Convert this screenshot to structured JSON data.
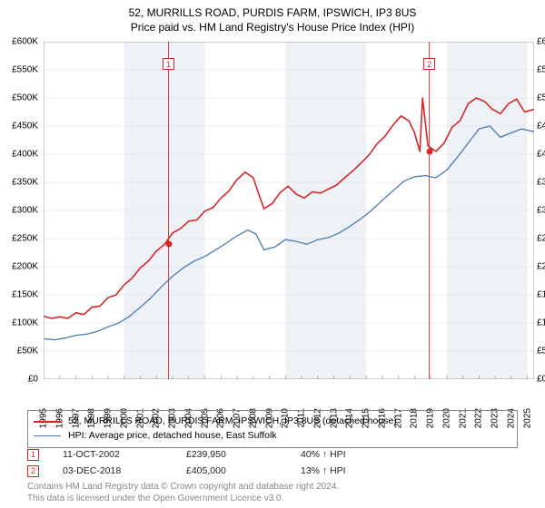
{
  "title": {
    "line1": "52, MURRILLS ROAD, PURDIS FARM, IPSWICH, IP3 8US",
    "line2": "Price paid vs. HM Land Registry's House Price Index (HPI)",
    "fontsize": 12,
    "color": "#000000"
  },
  "chart": {
    "type": "line",
    "background_color": "#ffffff",
    "shade_color": "#eef2f7",
    "grid_color": "#d8dde3",
    "axis_color": "#888888",
    "ylim": [
      0,
      600000
    ],
    "ytick_step": 50000,
    "y_ticks": [
      "£0",
      "£50K",
      "£100K",
      "£150K",
      "£200K",
      "£250K",
      "£300K",
      "£350K",
      "£400K",
      "£450K",
      "£500K",
      "£550K",
      "£600K"
    ],
    "x_years": [
      "1995",
      "1996",
      "1997",
      "1998",
      "1999",
      "2000",
      "2001",
      "2002",
      "2003",
      "2004",
      "2005",
      "2006",
      "2007",
      "2008",
      "2009",
      "2010",
      "2011",
      "2012",
      "2013",
      "2014",
      "2015",
      "2016",
      "2017",
      "2018",
      "2019",
      "2020",
      "2021",
      "2022",
      "2023",
      "2024",
      "2025"
    ],
    "series": [
      {
        "name": "price_paid",
        "label": "52, MURRILLS ROAD, PURDIS FARM, IPSWICH, IP3 8US (detached house)",
        "color": "#d62728",
        "line_width": 1.6,
        "points": [
          [
            0,
            112000
          ],
          [
            6,
            108000
          ],
          [
            12,
            111000
          ],
          [
            18,
            108000
          ],
          [
            24,
            118000
          ],
          [
            30,
            115000
          ],
          [
            36,
            128000
          ],
          [
            42,
            130000
          ],
          [
            48,
            145000
          ],
          [
            54,
            150000
          ],
          [
            60,
            168000
          ],
          [
            66,
            180000
          ],
          [
            72,
            198000
          ],
          [
            78,
            210000
          ],
          [
            84,
            228000
          ],
          [
            90,
            240000
          ],
          [
            96,
            260000
          ],
          [
            102,
            268000
          ],
          [
            108,
            281000
          ],
          [
            114,
            283000
          ],
          [
            120,
            299000
          ],
          [
            126,
            305000
          ],
          [
            132,
            322000
          ],
          [
            138,
            335000
          ],
          [
            144,
            355000
          ],
          [
            150,
            368000
          ],
          [
            156,
            358000
          ],
          [
            160,
            330000
          ],
          [
            164,
            303000
          ],
          [
            170,
            312000
          ],
          [
            176,
            332000
          ],
          [
            182,
            343000
          ],
          [
            188,
            329000
          ],
          [
            194,
            322000
          ],
          [
            200,
            333000
          ],
          [
            206,
            331000
          ],
          [
            212,
            338000
          ],
          [
            218,
            345000
          ],
          [
            224,
            358000
          ],
          [
            230,
            370000
          ],
          [
            236,
            384000
          ],
          [
            242,
            398000
          ],
          [
            248,
            418000
          ],
          [
            254,
            432000
          ],
          [
            260,
            452000
          ],
          [
            266,
            468000
          ],
          [
            272,
            459000
          ],
          [
            276,
            438000
          ],
          [
            280,
            405000
          ],
          [
            282,
            500000
          ],
          [
            286,
            415000
          ],
          [
            292,
            405000
          ],
          [
            298,
            420000
          ],
          [
            304,
            448000
          ],
          [
            310,
            460000
          ],
          [
            316,
            490000
          ],
          [
            322,
            500000
          ],
          [
            328,
            494000
          ],
          [
            334,
            480000
          ],
          [
            340,
            472000
          ],
          [
            346,
            490000
          ],
          [
            352,
            498000
          ],
          [
            358,
            475000
          ],
          [
            365,
            480000
          ]
        ]
      },
      {
        "name": "hpi",
        "label": "HPI: Average price, detached house, East Suffolk",
        "color": "#4c78b0",
        "line_width": 1.3,
        "points": [
          [
            0,
            72000
          ],
          [
            8,
            70000
          ],
          [
            16,
            73000
          ],
          [
            24,
            78000
          ],
          [
            32,
            80000
          ],
          [
            40,
            85000
          ],
          [
            48,
            93000
          ],
          [
            56,
            100000
          ],
          [
            64,
            112000
          ],
          [
            72,
            128000
          ],
          [
            80,
            145000
          ],
          [
            88,
            165000
          ],
          [
            96,
            183000
          ],
          [
            104,
            198000
          ],
          [
            112,
            210000
          ],
          [
            120,
            218000
          ],
          [
            128,
            230000
          ],
          [
            136,
            242000
          ],
          [
            144,
            255000
          ],
          [
            152,
            265000
          ],
          [
            158,
            258000
          ],
          [
            164,
            230000
          ],
          [
            172,
            235000
          ],
          [
            180,
            248000
          ],
          [
            188,
            245000
          ],
          [
            196,
            240000
          ],
          [
            204,
            248000
          ],
          [
            212,
            252000
          ],
          [
            220,
            260000
          ],
          [
            228,
            272000
          ],
          [
            236,
            285000
          ],
          [
            244,
            300000
          ],
          [
            252,
            318000
          ],
          [
            260,
            335000
          ],
          [
            268,
            352000
          ],
          [
            276,
            360000
          ],
          [
            284,
            362000
          ],
          [
            292,
            358000
          ],
          [
            300,
            372000
          ],
          [
            308,
            395000
          ],
          [
            316,
            420000
          ],
          [
            324,
            445000
          ],
          [
            332,
            450000
          ],
          [
            340,
            430000
          ],
          [
            348,
            438000
          ],
          [
            356,
            445000
          ],
          [
            365,
            440000
          ]
        ]
      }
    ],
    "events": [
      {
        "num": "1",
        "x_month": 93,
        "y_value": 239950,
        "marker_top": 18,
        "color": "#d62728"
      },
      {
        "num": "2",
        "x_month": 287,
        "y_value": 405000,
        "marker_top": 18,
        "color": "#d62728"
      }
    ]
  },
  "legend": {
    "rows": [
      {
        "color": "#d62728",
        "width": 2,
        "label": "52, MURRILLS ROAD, PURDIS FARM, IPSWICH, IP3 8US (detached house)"
      },
      {
        "color": "#4c78b0",
        "width": 1.5,
        "label": "HPI: Average price, detached house, East Suffolk"
      }
    ]
  },
  "event_table": {
    "rows": [
      {
        "num": "1",
        "color": "#d62728",
        "date": "11-OCT-2002",
        "price": "£239,950",
        "note": "40% ↑ HPI"
      },
      {
        "num": "2",
        "color": "#d62728",
        "date": "03-DEC-2018",
        "price": "£405,000",
        "note": "13% ↑ HPI"
      }
    ]
  },
  "footer": {
    "line1": "Contains HM Land Registry data © Crown copyright and database right 2024.",
    "line2": "This data is licensed under the Open Government Licence v3.0.",
    "color": "#888888"
  }
}
